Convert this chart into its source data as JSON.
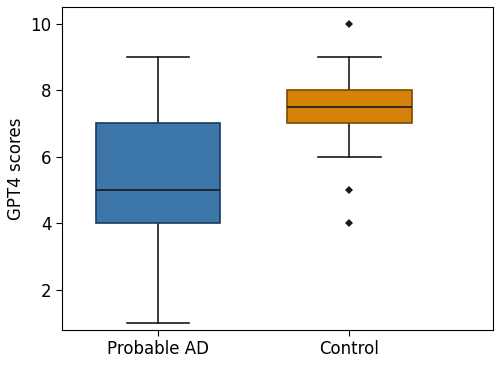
{
  "categories": [
    "Probable AD",
    "Control"
  ],
  "box_data": {
    "Probable AD": {
      "whisker_low": 1,
      "q1": 4,
      "median": 5,
      "q3": 7,
      "whisker_high": 9,
      "fliers": []
    },
    "Control": {
      "whisker_low": 6,
      "q1": 7,
      "median": 7.5,
      "q3": 8,
      "whisker_high": 9,
      "fliers": [
        10,
        5,
        4
      ]
    }
  },
  "colors": [
    "#3d76a8",
    "#d4820a"
  ],
  "edge_colors": [
    "#1a3a5c",
    "#7a4a05"
  ],
  "ylabel": "GPT4 scores",
  "ylim": [
    0.8,
    10.5
  ],
  "yticks": [
    2,
    4,
    6,
    8,
    10
  ],
  "positions": [
    1,
    2
  ],
  "xlim": [
    0.5,
    2.75
  ],
  "box_width": 0.65,
  "median_color": "#1a1a1a",
  "whisker_color": "#1a1a1a",
  "flier_color": "#1a1a1a",
  "flier_marker": "D",
  "flier_size": 4,
  "cap_ratio": 0.5,
  "linewidth": 1.2,
  "tick_labelsize": 12,
  "ylabel_fontsize": 12
}
